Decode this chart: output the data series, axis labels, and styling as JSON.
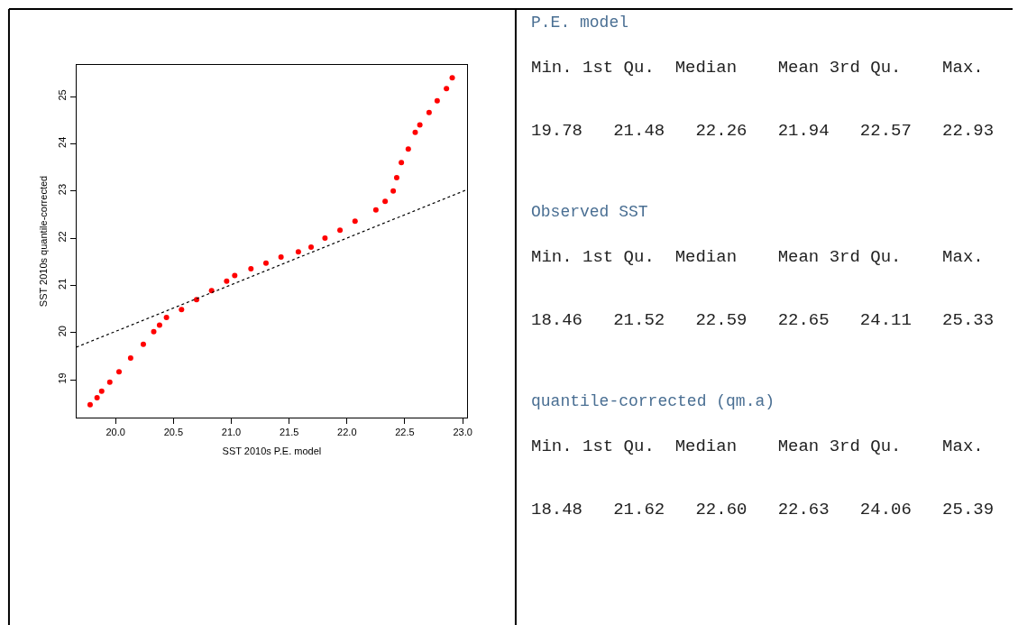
{
  "chart_data": [
    {
      "type": "scatter",
      "xlabel": "SST 2010s P.E. model",
      "ylabel": "SST 2010s quantile-corrected",
      "xlim": [
        19.66,
        23.04
      ],
      "ylim": [
        18.2,
        25.67
      ],
      "xticks": [
        {
          "value": 20,
          "label": "20.0"
        },
        {
          "value": 20.5,
          "label": "20.5"
        },
        {
          "value": 21,
          "label": "21.0"
        },
        {
          "value": 21.5,
          "label": "21.5"
        },
        {
          "value": 22,
          "label": "22.0"
        },
        {
          "value": 22.5,
          "label": "22.5"
        },
        {
          "value": 23,
          "label": "23.0"
        }
      ],
      "yticks": [
        19,
        20,
        21,
        22,
        23,
        24,
        25
      ],
      "marker": "circle",
      "series": [
        {
          "color": "#ff0000",
          "x": [
            19.78,
            19.84,
            19.88,
            19.95,
            20.03,
            20.13,
            20.24,
            20.33,
            20.38,
            20.44,
            20.57,
            20.7,
            20.83,
            20.96,
            21.03,
            21.17,
            21.3,
            21.43,
            21.58,
            21.69,
            21.81,
            21.94,
            22.07,
            22.25,
            22.33,
            22.4,
            22.43,
            22.47,
            22.53,
            22.59,
            22.63,
            22.71,
            22.78,
            22.86,
            22.91
          ],
          "values": [
            18.47,
            18.62,
            18.76,
            18.95,
            19.17,
            19.46,
            19.75,
            20.02,
            20.16,
            20.32,
            20.49,
            20.7,
            20.89,
            21.09,
            21.21,
            21.35,
            21.47,
            21.6,
            21.71,
            21.81,
            22.0,
            22.17,
            22.36,
            22.6,
            22.78,
            23.0,
            23.28,
            23.6,
            23.89,
            24.24,
            24.4,
            24.66,
            24.91,
            25.17,
            25.4
          ]
        },
        {
          "type": "line",
          "line_style": "dotted",
          "marker": "none",
          "color": "#000000",
          "x": [
            19.66,
            23.04
          ],
          "values": [
            19.69,
            23.03
          ]
        }
      ]
    },
    {
      "type": "other",
      "annotations": [
        "P.E. model",
        "Min. 1st Qu.  Median    Mean 3rd Qu.    Max.",
        "19.78   21.48   22.26   21.94   22.57   22.93",
        "Observed SST",
        "Min. 1st Qu.  Median    Mean 3rd Qu.    Max.",
        "18.46   21.52   22.59   22.65   24.11   25.33",
        "quantile-corrected (qm.a)",
        "Min. 1st Qu.  Median    Mean 3rd Qu.    Max.",
        "18.48   21.62   22.60   22.63   24.06   25.39"
      ]
    }
  ]
}
